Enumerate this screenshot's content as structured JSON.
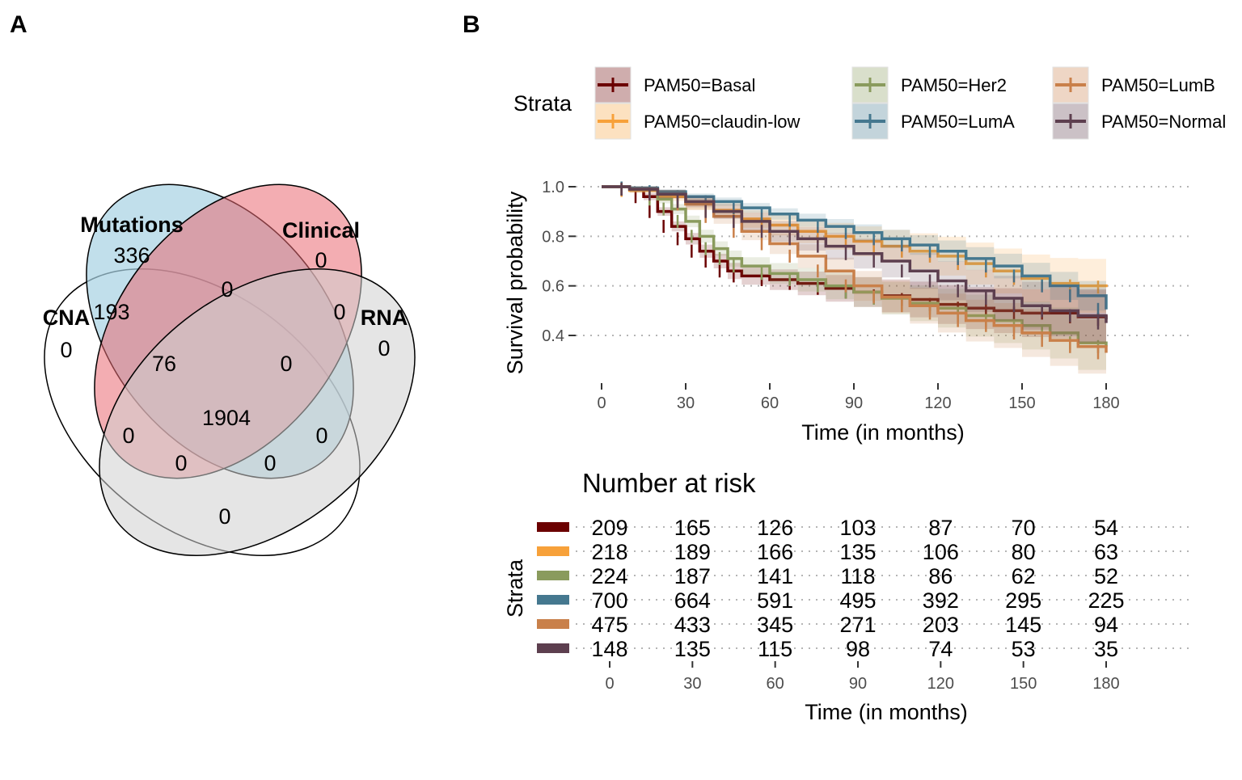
{
  "panels": {
    "a_label": "A",
    "b_label": "B"
  },
  "venn": {
    "sets": [
      {
        "name": "CNA",
        "color": "#ffffff"
      },
      {
        "name": "Mutations",
        "color": "#a6d1e3"
      },
      {
        "name": "Clinical",
        "color": "#ea6a72"
      },
      {
        "name": "RNA",
        "color": "#cfcfcf"
      }
    ],
    "counts": {
      "mutations_only": "336",
      "clinical_only": "0",
      "cna_only": "0",
      "rna_only": "0",
      "mutations_clinical": "0",
      "cna_mutations": "193",
      "clinical_rna": "0",
      "cna_mutations_clinical": "76",
      "mutations_clinical_rna": "0",
      "all": "1904",
      "cna_clinical": "0",
      "mutations_rna": "0",
      "cna_clinical_rna": "0",
      "cna_mutations_rna": "0",
      "cna_rna": "0"
    }
  },
  "chart_data": {
    "type": "line",
    "title": "",
    "xlabel": "Time (in months)",
    "ylabel": "Survival probability",
    "xlim": [
      0,
      180
    ],
    "ylim": [
      0.32,
      1.02
    ],
    "x_ticks": [
      0,
      30,
      60,
      90,
      120,
      150,
      180
    ],
    "y_ticks": [
      0.4,
      0.6,
      0.8,
      1.0
    ],
    "y_tick_labels": [
      "0.4",
      "0.6",
      "0.8",
      "1.0"
    ],
    "grid": "horizontal dotted",
    "legend": {
      "title": "Strata",
      "placement": "top"
    },
    "series": [
      {
        "name": "PAM50=Basal",
        "color": "#6b0000",
        "x": [
          0,
          10,
          15,
          20,
          25,
          30,
          35,
          40,
          45,
          50,
          60,
          70,
          80,
          90,
          100,
          110,
          120,
          130,
          140,
          150,
          160,
          170,
          180
        ],
        "y": [
          1.0,
          0.99,
          0.96,
          0.9,
          0.84,
          0.79,
          0.74,
          0.7,
          0.66,
          0.64,
          0.625,
          0.61,
          0.59,
          0.575,
          0.56,
          0.545,
          0.525,
          0.51,
          0.5,
          0.49,
          0.49,
          0.475,
          0.465
        ]
      },
      {
        "name": "PAM50=claudin-low",
        "color": "#f7a13a",
        "x": [
          0,
          10,
          20,
          30,
          40,
          50,
          60,
          70,
          80,
          90,
          100,
          110,
          120,
          130,
          140,
          150,
          160,
          170,
          180
        ],
        "y": [
          1.0,
          0.985,
          0.96,
          0.93,
          0.905,
          0.87,
          0.845,
          0.82,
          0.8,
          0.78,
          0.76,
          0.74,
          0.72,
          0.69,
          0.66,
          0.63,
          0.61,
          0.6,
          0.595
        ]
      },
      {
        "name": "PAM50=Her2",
        "color": "#8a9b5d",
        "x": [
          0,
          10,
          20,
          25,
          30,
          35,
          40,
          45,
          50,
          60,
          70,
          80,
          90,
          100,
          110,
          120,
          130,
          140,
          150,
          160,
          170,
          180
        ],
        "y": [
          1.0,
          0.99,
          0.95,
          0.91,
          0.86,
          0.8,
          0.75,
          0.71,
          0.68,
          0.65,
          0.625,
          0.6,
          0.575,
          0.55,
          0.53,
          0.51,
          0.48,
          0.46,
          0.44,
          0.41,
          0.37,
          0.355
        ]
      },
      {
        "name": "PAM50=LumA",
        "color": "#45788f",
        "x": [
          0,
          10,
          20,
          30,
          40,
          50,
          60,
          70,
          80,
          90,
          100,
          110,
          120,
          130,
          140,
          150,
          160,
          170,
          180
        ],
        "y": [
          1.0,
          0.995,
          0.98,
          0.96,
          0.94,
          0.915,
          0.89,
          0.865,
          0.84,
          0.815,
          0.79,
          0.765,
          0.74,
          0.71,
          0.68,
          0.64,
          0.6,
          0.56,
          0.505
        ]
      },
      {
        "name": "PAM50=LumB",
        "color": "#c9804a",
        "x": [
          0,
          10,
          20,
          30,
          40,
          50,
          60,
          70,
          80,
          90,
          100,
          110,
          120,
          130,
          140,
          150,
          160,
          170,
          180
        ],
        "y": [
          1.0,
          0.99,
          0.97,
          0.93,
          0.88,
          0.82,
          0.77,
          0.72,
          0.66,
          0.6,
          0.555,
          0.52,
          0.49,
          0.46,
          0.44,
          0.41,
          0.38,
          0.355,
          0.33
        ]
      },
      {
        "name": "PAM50=Normal",
        "color": "#5d3f4f",
        "x": [
          0,
          10,
          20,
          30,
          40,
          50,
          60,
          70,
          80,
          90,
          100,
          110,
          120,
          130,
          140,
          150,
          160,
          170,
          180
        ],
        "y": [
          1.0,
          0.99,
          0.97,
          0.94,
          0.9,
          0.86,
          0.82,
          0.79,
          0.76,
          0.73,
          0.7,
          0.66,
          0.62,
          0.58,
          0.55,
          0.52,
          0.5,
          0.48,
          0.45
        ]
      }
    ],
    "risk_table": {
      "title": "Number at risk",
      "ylabel": "Strata",
      "xlabel": "Time (in months)",
      "times": [
        0,
        30,
        60,
        90,
        120,
        150,
        180
      ],
      "rows": [
        {
          "color": "#6b0000",
          "values": [
            "209",
            "165",
            "126",
            "103",
            "87",
            "70",
            "54"
          ]
        },
        {
          "color": "#f7a13a",
          "values": [
            "218",
            "189",
            "166",
            "135",
            "106",
            "80",
            "63"
          ]
        },
        {
          "color": "#8a9b5d",
          "values": [
            "224",
            "187",
            "141",
            "118",
            "86",
            "62",
            "52"
          ]
        },
        {
          "color": "#45788f",
          "values": [
            "700",
            "664",
            "591",
            "495",
            "392",
            "295",
            "225"
          ]
        },
        {
          "color": "#c9804a",
          "values": [
            "475",
            "433",
            "345",
            "271",
            "203",
            "145",
            "94"
          ]
        },
        {
          "color": "#5d3f4f",
          "values": [
            "148",
            "135",
            "115",
            "98",
            "74",
            "53",
            "35"
          ]
        }
      ]
    }
  }
}
